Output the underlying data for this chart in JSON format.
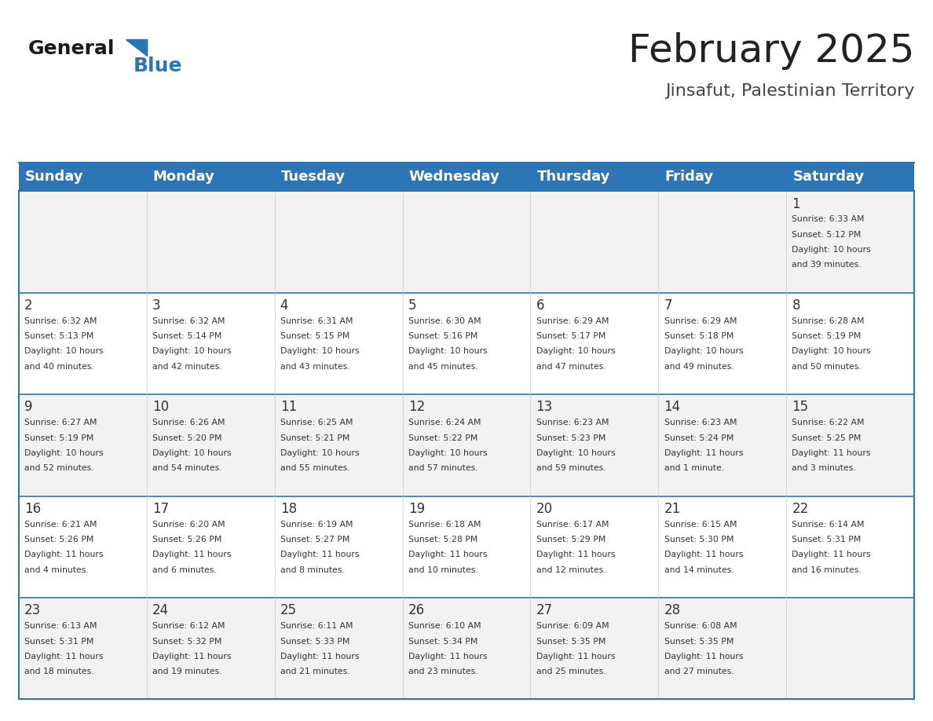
{
  "title": "February 2025",
  "subtitle": "Jinsafut, Palestinian Territory",
  "header_color": "#2E75B6",
  "header_text_color": "#FFFFFF",
  "cell_bg_even": "#F2F2F2",
  "cell_bg_odd": "#FFFFFF",
  "border_color": "#2E75B6",
  "day_headers": [
    "Sunday",
    "Monday",
    "Tuesday",
    "Wednesday",
    "Thursday",
    "Friday",
    "Saturday"
  ],
  "days": [
    {
      "day": 1,
      "col": 6,
      "row": 0,
      "sunrise": "6:33 AM",
      "sunset": "5:12 PM",
      "daylight": "10 hours and 39 minutes."
    },
    {
      "day": 2,
      "col": 0,
      "row": 1,
      "sunrise": "6:32 AM",
      "sunset": "5:13 PM",
      "daylight": "10 hours and 40 minutes."
    },
    {
      "day": 3,
      "col": 1,
      "row": 1,
      "sunrise": "6:32 AM",
      "sunset": "5:14 PM",
      "daylight": "10 hours and 42 minutes."
    },
    {
      "day": 4,
      "col": 2,
      "row": 1,
      "sunrise": "6:31 AM",
      "sunset": "5:15 PM",
      "daylight": "10 hours and 43 minutes."
    },
    {
      "day": 5,
      "col": 3,
      "row": 1,
      "sunrise": "6:30 AM",
      "sunset": "5:16 PM",
      "daylight": "10 hours and 45 minutes."
    },
    {
      "day": 6,
      "col": 4,
      "row": 1,
      "sunrise": "6:29 AM",
      "sunset": "5:17 PM",
      "daylight": "10 hours and 47 minutes."
    },
    {
      "day": 7,
      "col": 5,
      "row": 1,
      "sunrise": "6:29 AM",
      "sunset": "5:18 PM",
      "daylight": "10 hours and 49 minutes."
    },
    {
      "day": 8,
      "col": 6,
      "row": 1,
      "sunrise": "6:28 AM",
      "sunset": "5:19 PM",
      "daylight": "10 hours and 50 minutes."
    },
    {
      "day": 9,
      "col": 0,
      "row": 2,
      "sunrise": "6:27 AM",
      "sunset": "5:19 PM",
      "daylight": "10 hours and 52 minutes."
    },
    {
      "day": 10,
      "col": 1,
      "row": 2,
      "sunrise": "6:26 AM",
      "sunset": "5:20 PM",
      "daylight": "10 hours and 54 minutes."
    },
    {
      "day": 11,
      "col": 2,
      "row": 2,
      "sunrise": "6:25 AM",
      "sunset": "5:21 PM",
      "daylight": "10 hours and 55 minutes."
    },
    {
      "day": 12,
      "col": 3,
      "row": 2,
      "sunrise": "6:24 AM",
      "sunset": "5:22 PM",
      "daylight": "10 hours and 57 minutes."
    },
    {
      "day": 13,
      "col": 4,
      "row": 2,
      "sunrise": "6:23 AM",
      "sunset": "5:23 PM",
      "daylight": "10 hours and 59 minutes."
    },
    {
      "day": 14,
      "col": 5,
      "row": 2,
      "sunrise": "6:23 AM",
      "sunset": "5:24 PM",
      "daylight": "11 hours and 1 minute."
    },
    {
      "day": 15,
      "col": 6,
      "row": 2,
      "sunrise": "6:22 AM",
      "sunset": "5:25 PM",
      "daylight": "11 hours and 3 minutes."
    },
    {
      "day": 16,
      "col": 0,
      "row": 3,
      "sunrise": "6:21 AM",
      "sunset": "5:26 PM",
      "daylight": "11 hours and 4 minutes."
    },
    {
      "day": 17,
      "col": 1,
      "row": 3,
      "sunrise": "6:20 AM",
      "sunset": "5:26 PM",
      "daylight": "11 hours and 6 minutes."
    },
    {
      "day": 18,
      "col": 2,
      "row": 3,
      "sunrise": "6:19 AM",
      "sunset": "5:27 PM",
      "daylight": "11 hours and 8 minutes."
    },
    {
      "day": 19,
      "col": 3,
      "row": 3,
      "sunrise": "6:18 AM",
      "sunset": "5:28 PM",
      "daylight": "11 hours and 10 minutes."
    },
    {
      "day": 20,
      "col": 4,
      "row": 3,
      "sunrise": "6:17 AM",
      "sunset": "5:29 PM",
      "daylight": "11 hours and 12 minutes."
    },
    {
      "day": 21,
      "col": 5,
      "row": 3,
      "sunrise": "6:15 AM",
      "sunset": "5:30 PM",
      "daylight": "11 hours and 14 minutes."
    },
    {
      "day": 22,
      "col": 6,
      "row": 3,
      "sunrise": "6:14 AM",
      "sunset": "5:31 PM",
      "daylight": "11 hours and 16 minutes."
    },
    {
      "day": 23,
      "col": 0,
      "row": 4,
      "sunrise": "6:13 AM",
      "sunset": "5:31 PM",
      "daylight": "11 hours and 18 minutes."
    },
    {
      "day": 24,
      "col": 1,
      "row": 4,
      "sunrise": "6:12 AM",
      "sunset": "5:32 PM",
      "daylight": "11 hours and 19 minutes."
    },
    {
      "day": 25,
      "col": 2,
      "row": 4,
      "sunrise": "6:11 AM",
      "sunset": "5:33 PM",
      "daylight": "11 hours and 21 minutes."
    },
    {
      "day": 26,
      "col": 3,
      "row": 4,
      "sunrise": "6:10 AM",
      "sunset": "5:34 PM",
      "daylight": "11 hours and 23 minutes."
    },
    {
      "day": 27,
      "col": 4,
      "row": 4,
      "sunrise": "6:09 AM",
      "sunset": "5:35 PM",
      "daylight": "11 hours and 25 minutes."
    },
    {
      "day": 28,
      "col": 5,
      "row": 4,
      "sunrise": "6:08 AM",
      "sunset": "5:35 PM",
      "daylight": "11 hours and 27 minutes."
    }
  ],
  "num_rows": 5,
  "num_cols": 7,
  "logo_text_general": "General",
  "logo_text_blue": "Blue"
}
